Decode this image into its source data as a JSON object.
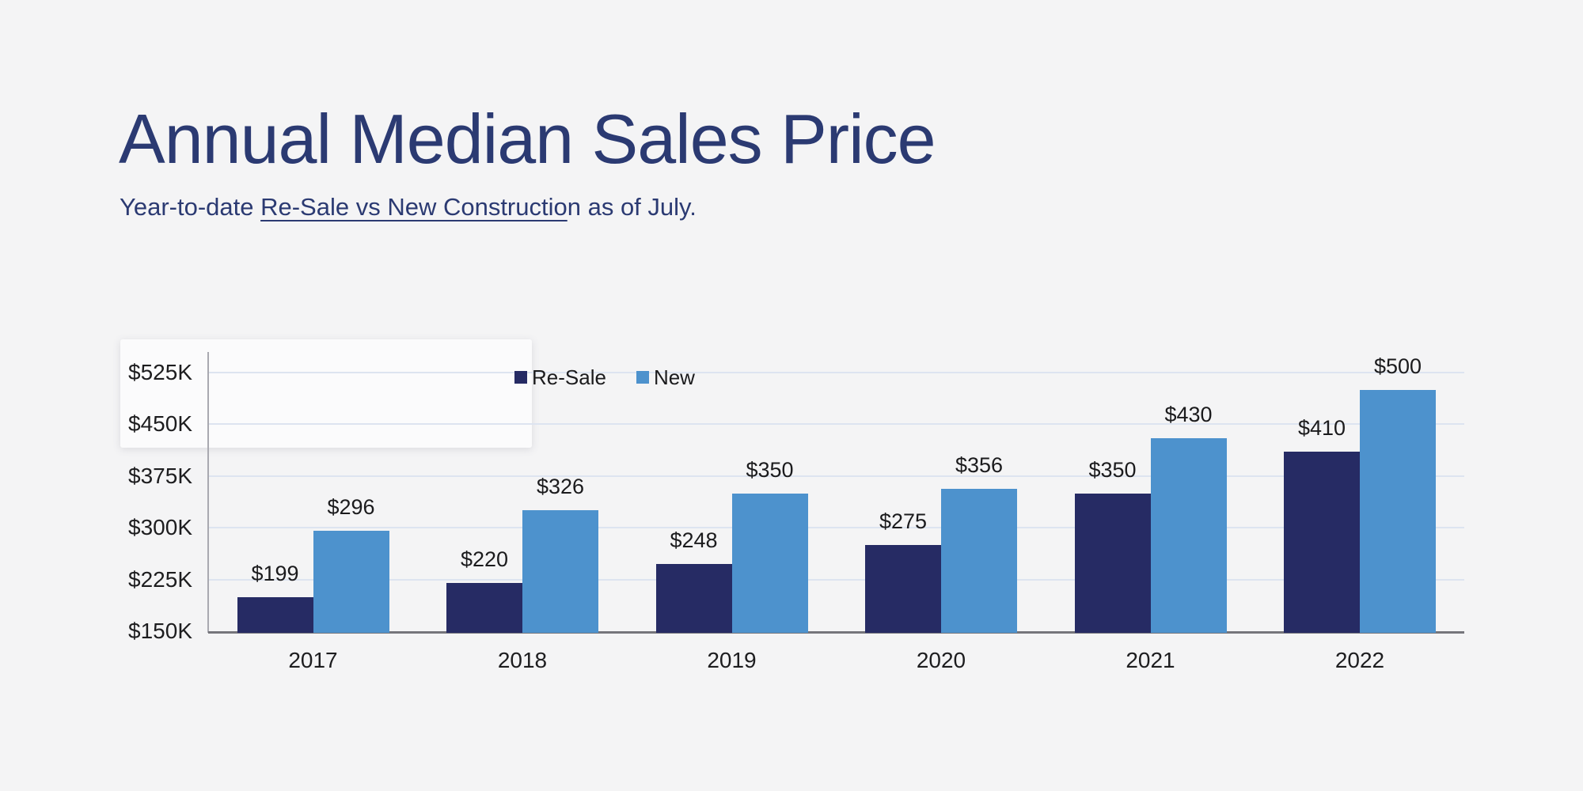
{
  "colors": {
    "background": "#f4f4f5",
    "heading_navy": "#2b3a72",
    "resale_bar": "#262b64",
    "new_bar": "#4d92cd",
    "gridline": "#dde4f0",
    "x_axis": "#75757b",
    "y_axis": "#a9a9b0",
    "tick_text": "#1d1d1f"
  },
  "header": {
    "title": "Annual Median Sales Price",
    "subtitle_prefix": "Year-to-date ",
    "subtitle_link": "Re-Sale vs New Constructio",
    "subtitle_suffix": "n as of July."
  },
  "chart_data": {
    "type": "bar",
    "title": "Annual Median Sales Price",
    "subtitle": "Year-to-date Re-Sale vs New Construction as of July.",
    "categories": [
      "2017",
      "2018",
      "2019",
      "2020",
      "2021",
      "2022"
    ],
    "series": [
      {
        "name": "Re-Sale",
        "color": "#262b64",
        "values": [
          199,
          220,
          248,
          275,
          350,
          410
        ]
      },
      {
        "name": "New",
        "color": "#4d92cd",
        "values": [
          296,
          326,
          350,
          356,
          430,
          500
        ]
      }
    ],
    "value_prefix": "$",
    "values_unit": "K",
    "xlabel": "",
    "ylabel": "",
    "ylim": [
      150,
      525
    ],
    "yticks": [
      {
        "value": 150,
        "label": "$150K"
      },
      {
        "value": 225,
        "label": "$225K"
      },
      {
        "value": 300,
        "label": "$300K"
      },
      {
        "value": 375,
        "label": "$375K"
      },
      {
        "value": 450,
        "label": "$450K"
      },
      {
        "value": 525,
        "label": "$525K"
      }
    ],
    "grid": true,
    "legend_position": "top"
  }
}
